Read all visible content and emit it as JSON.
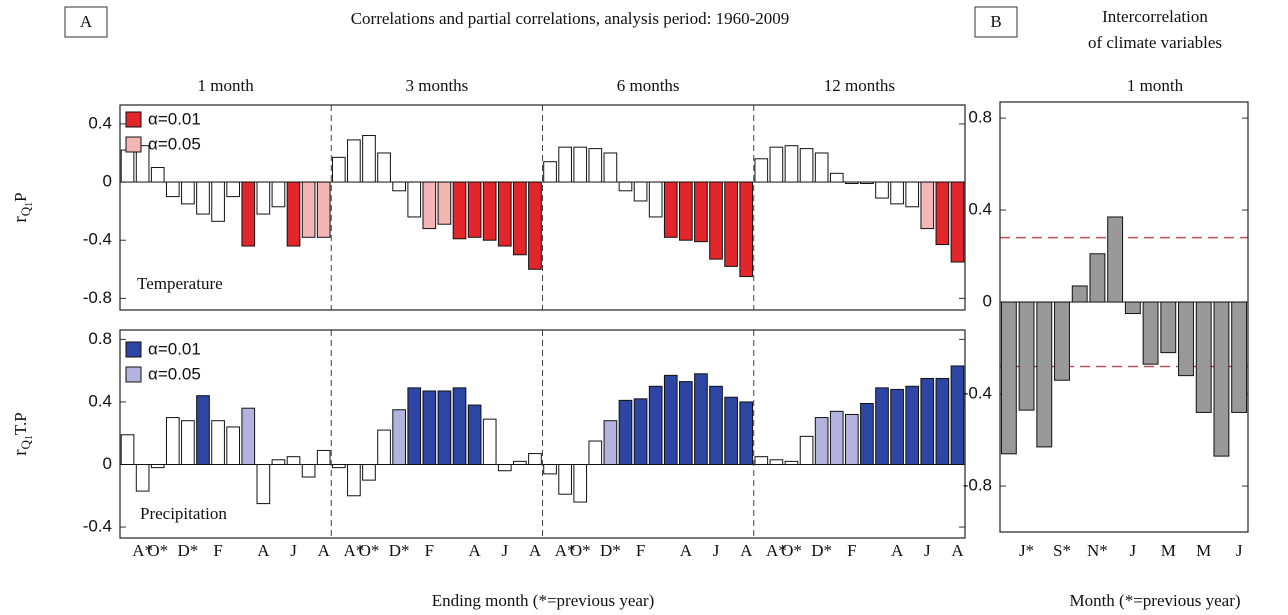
{
  "panel_a": {
    "label": "A",
    "title": "Correlations and partial correlations, analysis period: 1960-2009",
    "groups": [
      "1 month",
      "3 months",
      "6 months",
      "12 months"
    ],
    "xlabel": "Ending month (*=previous year)"
  },
  "panel_b": {
    "label": "B",
    "title": [
      "Intercorrelation",
      "of climate variables"
    ],
    "group": "1 month",
    "xlabel": "Month (*=previous year)"
  },
  "chart_data": [
    {
      "type": "bar",
      "ylabel": [
        "r",
        "Q",
        "1",
        "P"
      ],
      "annotation": "Temperature",
      "legend": [
        {
          "label": "α=0.01",
          "color": "#e3262c"
        },
        {
          "label": "α=0.05",
          "color": "#f4b5b5"
        }
      ],
      "categories": [
        null,
        "A*",
        "O*",
        null,
        "D*",
        null,
        "F",
        null,
        null,
        "A",
        null,
        "J",
        null,
        "A",
        null,
        "A*",
        "O*",
        null,
        "D*",
        null,
        "F",
        null,
        null,
        "A",
        null,
        "J",
        null,
        "A",
        null,
        "A*",
        "O*",
        null,
        "D*",
        null,
        "F",
        null,
        null,
        "A",
        null,
        "J",
        null,
        "A",
        null,
        "A*",
        "O*",
        null,
        "D*",
        null,
        "F",
        null,
        null,
        "A",
        null,
        "J",
        null,
        "A"
      ],
      "values": [
        0.22,
        0.25,
        0.1,
        -0.1,
        -0.15,
        -0.22,
        -0.27,
        -0.1,
        -0.44,
        -0.22,
        -0.17,
        -0.44,
        -0.38,
        -0.38,
        0.17,
        0.29,
        0.32,
        0.2,
        -0.06,
        -0.24,
        -0.32,
        -0.29,
        -0.39,
        -0.38,
        -0.4,
        -0.44,
        -0.5,
        -0.6,
        0.14,
        0.24,
        0.24,
        0.23,
        0.2,
        -0.06,
        -0.13,
        -0.24,
        -0.38,
        -0.4,
        -0.41,
        -0.53,
        -0.58,
        -0.65,
        0.16,
        0.24,
        0.25,
        0.23,
        0.2,
        0.06,
        -0.01,
        -0.01,
        -0.11,
        -0.15,
        -0.17,
        -0.32,
        -0.43,
        -0.55
      ],
      "colors": [
        "#fff",
        "#fff",
        "#fff",
        "#fff",
        "#fff",
        "#fff",
        "#fff",
        "#fff",
        "#e3262c",
        "#fff",
        "#fff",
        "#e3262c",
        "#f4b5b5",
        "#f4b5b5",
        "#fff",
        "#fff",
        "#fff",
        "#fff",
        "#fff",
        "#fff",
        "#f4b5b5",
        "#f4b5b5",
        "#e3262c",
        "#e3262c",
        "#e3262c",
        "#e3262c",
        "#e3262c",
        "#e3262c",
        "#fff",
        "#fff",
        "#fff",
        "#fff",
        "#fff",
        "#fff",
        "#fff",
        "#fff",
        "#e3262c",
        "#e3262c",
        "#e3262c",
        "#e3262c",
        "#e3262c",
        "#e3262c",
        "#fff",
        "#fff",
        "#fff",
        "#fff",
        "#fff",
        "#fff",
        "#fff",
        "#fff",
        "#fff",
        "#fff",
        "#fff",
        "#f4b5b5",
        "#e3262c",
        "#e3262c"
      ],
      "ylim": [
        -0.88,
        0.53
      ],
      "yticks": [
        0.4,
        0,
        -0.4,
        -0.8
      ]
    },
    {
      "type": "bar",
      "ylabel": [
        "r",
        "Q",
        "1",
        "T.P"
      ],
      "annotation": "Precipitation",
      "legend": [
        {
          "label": "α=0.01",
          "color": "#2d45a3"
        },
        {
          "label": "α=0.05",
          "color": "#b3b3e0"
        }
      ],
      "categories": [
        null,
        "A*",
        "O*",
        null,
        "D*",
        null,
        "F",
        null,
        null,
        "A",
        null,
        "J",
        null,
        "A",
        null,
        "A*",
        "O*",
        null,
        "D*",
        null,
        "F",
        null,
        null,
        "A",
        null,
        "J",
        null,
        "A",
        null,
        "A*",
        "O*",
        null,
        "D*",
        null,
        "F",
        null,
        null,
        "A",
        null,
        "J",
        null,
        "A",
        null,
        "A*",
        "O*",
        null,
        "D*",
        null,
        "F",
        null,
        null,
        "A",
        null,
        "J",
        null,
        "A"
      ],
      "values": [
        0.19,
        -0.17,
        -0.02,
        0.3,
        0.28,
        0.44,
        0.28,
        0.24,
        0.36,
        -0.25,
        0.03,
        0.05,
        -0.08,
        0.09,
        -0.02,
        -0.2,
        -0.1,
        0.22,
        0.35,
        0.49,
        0.47,
        0.47,
        0.49,
        0.38,
        0.29,
        -0.04,
        0.02,
        0.07,
        -0.06,
        -0.19,
        -0.24,
        0.15,
        0.28,
        0.41,
        0.42,
        0.5,
        0.57,
        0.53,
        0.58,
        0.5,
        0.43,
        0.4,
        0.05,
        0.03,
        0.02,
        0.18,
        0.3,
        0.34,
        0.32,
        0.39,
        0.49,
        0.48,
        0.5,
        0.55,
        0.55,
        0.63
      ],
      "colors": [
        "#fff",
        "#fff",
        "#fff",
        "#fff",
        "#fff",
        "#2d45a3",
        "#fff",
        "#fff",
        "#b3b3e0",
        "#fff",
        "#fff",
        "#fff",
        "#fff",
        "#fff",
        "#fff",
        "#fff",
        "#fff",
        "#fff",
        "#b3b3e0",
        "#2d45a3",
        "#2d45a3",
        "#2d45a3",
        "#2d45a3",
        "#2d45a3",
        "#fff",
        "#fff",
        "#fff",
        "#fff",
        "#fff",
        "#fff",
        "#fff",
        "#fff",
        "#b3b3e0",
        "#2d45a3",
        "#2d45a3",
        "#2d45a3",
        "#2d45a3",
        "#2d45a3",
        "#2d45a3",
        "#2d45a3",
        "#2d45a3",
        "#2d45a3",
        "#fff",
        "#fff",
        "#fff",
        "#fff",
        "#b3b3e0",
        "#b3b3e0",
        "#b3b3e0",
        "#2d45a3",
        "#2d45a3",
        "#2d45a3",
        "#2d45a3",
        "#2d45a3",
        "#2d45a3",
        "#2d45a3"
      ],
      "ylim": [
        -0.47,
        0.86
      ],
      "yticks": [
        0.8,
        0.4,
        0,
        -0.4
      ]
    },
    {
      "type": "bar",
      "color": "#999999",
      "categories": [
        null,
        "J*",
        null,
        "S*",
        null,
        "N*",
        null,
        "J",
        null,
        "M",
        null,
        "M",
        null,
        "J"
      ],
      "values": [
        -0.66,
        -0.47,
        -0.63,
        -0.34,
        0.07,
        0.21,
        0.37,
        -0.05,
        -0.27,
        -0.22,
        -0.32,
        -0.48,
        -0.67,
        -0.48
      ],
      "hlines": [
        0.28,
        -0.28
      ],
      "hline_color": "#c0505a",
      "ylim": [
        -1.0,
        0.87
      ],
      "yticks": [
        0.8,
        0.4,
        0,
        -0.4,
        -0.8
      ]
    }
  ]
}
